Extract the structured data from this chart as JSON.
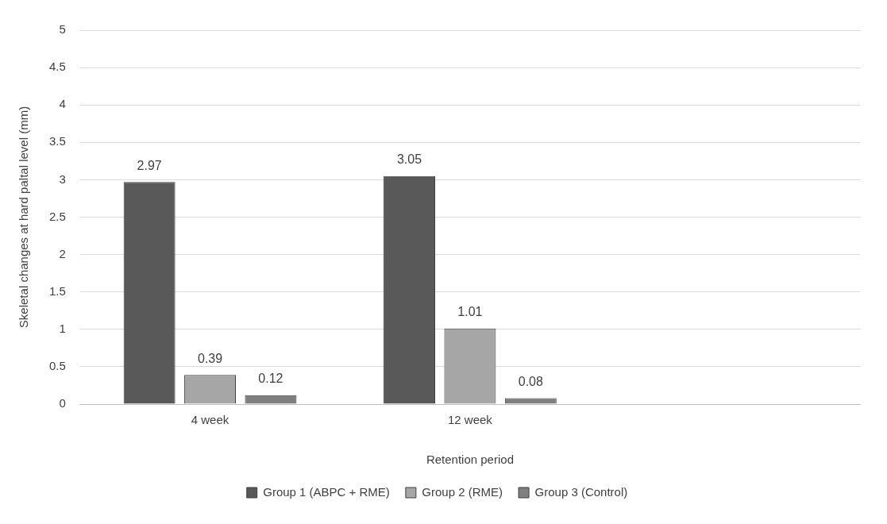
{
  "chart_data": {
    "type": "bar",
    "xlabel": "Retention period",
    "ylabel": "Skeletal changes at hard paltal level (mm)",
    "categories": [
      "4 week",
      "12 week",
      null
    ],
    "series": [
      {
        "name": "Group 1 (ABPC + RME)",
        "color": "#595959",
        "values": [
          2.97,
          3.05,
          null
        ]
      },
      {
        "name": "Group 2 (RME)",
        "color": "#a6a6a6",
        "values": [
          0.39,
          1.01,
          null
        ]
      },
      {
        "name": "Group 3 (Control)",
        "color": "#7f7f7f",
        "values": [
          0.12,
          0.08,
          null
        ]
      }
    ],
    "ylim": [
      0,
      5
    ],
    "yticks": [
      0,
      0.5,
      1,
      1.5,
      2,
      2.5,
      3,
      3.5,
      4,
      4.5,
      5
    ],
    "grid": "y",
    "legend": "bottom",
    "data_labels": true
  }
}
